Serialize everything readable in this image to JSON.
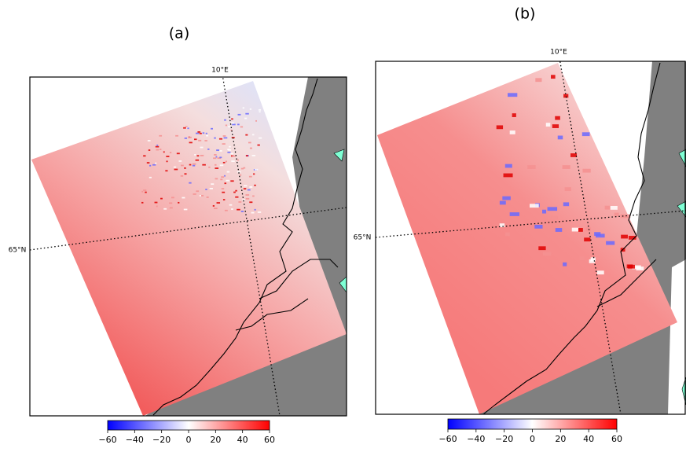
{
  "panels": [
    {
      "title": "(a)",
      "lon_label": "10°E",
      "lat_label": "65°N"
    },
    {
      "title": "(b)",
      "lon_label": "10°E",
      "lat_label": "65°N"
    }
  ],
  "colorbar": {
    "lim": [
      -60,
      60
    ],
    "colors": [
      "#0000ff",
      "#ffffff",
      "#ff0000"
    ],
    "ticks": [
      {
        "value": -60,
        "label": "−60"
      },
      {
        "value": -40,
        "label": "−40"
      },
      {
        "value": -20,
        "label": "−20"
      },
      0,
      20,
      40,
      60
    ]
  }
}
